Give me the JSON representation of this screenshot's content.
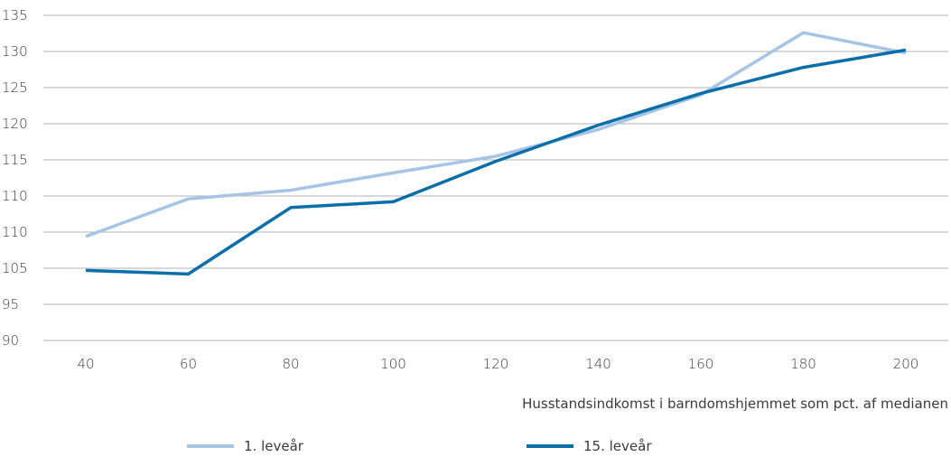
{
  "chart_data": {
    "type": "line",
    "title": "",
    "xlabel": "Husstandsindkomst i barndomshjemmet som pct. af medianen",
    "ylabel": "",
    "x": [
      40,
      60,
      80,
      100,
      120,
      140,
      160,
      180,
      200
    ],
    "x_ticks": [
      "40",
      "60",
      "80",
      "100",
      "120",
      "140",
      "160",
      "180",
      "200"
    ],
    "y_ticks": [
      "90",
      "95",
      "105",
      "110",
      "110",
      "115",
      "120",
      "125",
      "130",
      "135"
    ],
    "y_note": "Tick labels printed as shown (the axis is categorical-like with equal spacing).",
    "ylim_index": [
      0,
      9
    ],
    "grid": true,
    "legend_position": "bottom",
    "series": [
      {
        "name": "1. leveår",
        "color": "#a6c4e4",
        "values": [
          107.2,
          109.8,
          110.8,
          113.2,
          115.5,
          119.2,
          124.0,
          132.6,
          129.8
        ]
      },
      {
        "name": "15. leveår",
        "color": "#0a6ea8",
        "values": [
          104.7,
          104.2,
          109.2,
          109.6,
          114.8,
          119.8,
          124.2,
          127.8,
          130.2
        ]
      }
    ]
  }
}
